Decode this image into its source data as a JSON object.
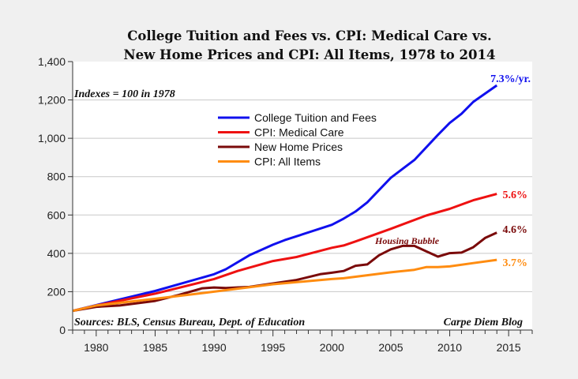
{
  "chart_data": {
    "type": "line",
    "title": [
      "College Tuition and Fees vs. CPI: Medical Care vs.",
      "New Home Prices and CPI: All Items, 1978 to 2014"
    ],
    "xlabel": "",
    "ylabel": "",
    "xlim": [
      1978,
      2017
    ],
    "ylim": [
      0,
      1400
    ],
    "x_ticks": [
      1980,
      1985,
      1990,
      1995,
      2000,
      2005,
      2010,
      2015
    ],
    "y_ticks": [
      0,
      200,
      400,
      600,
      800,
      1000,
      1200,
      1400
    ],
    "y_tick_labels": [
      "0",
      "200",
      "400",
      "600",
      "800",
      "1,000",
      "1,200",
      "1,400"
    ],
    "grid": "horizontal",
    "legend_position": "top-center",
    "annotations": {
      "index_note": "Indexes = 100 in 1978",
      "housing_bubble": "Housing Bubble",
      "sources": "Sources: BLS, Census Bureau, Dept. of Education",
      "credit": "Carpe Diem Blog"
    },
    "series": [
      {
        "name": "College Tuition and Fees",
        "color": "#1010ee",
        "end_label": "7.3%/yr.",
        "points": [
          [
            1978,
            100
          ],
          [
            1980,
            130
          ],
          [
            1985,
            204
          ],
          [
            1990,
            291
          ],
          [
            1991,
            317
          ],
          [
            1993,
            390
          ],
          [
            1995,
            445
          ],
          [
            1996,
            469
          ],
          [
            2000,
            549
          ],
          [
            2001,
            581
          ],
          [
            2002,
            618
          ],
          [
            2003,
            666
          ],
          [
            2005,
            794
          ],
          [
            2007,
            887
          ],
          [
            2009,
            1018
          ],
          [
            2010,
            1080
          ],
          [
            2011,
            1128
          ],
          [
            2012,
            1190
          ],
          [
            2014,
            1276
          ]
        ]
      },
      {
        "name": "CPI: Medical Care",
        "color": "#ee1111",
        "end_label": "5.6%",
        "points": [
          [
            1978,
            100
          ],
          [
            1980,
            128
          ],
          [
            1985,
            190
          ],
          [
            1990,
            266
          ],
          [
            1992,
            308
          ],
          [
            1995,
            360
          ],
          [
            1997,
            381
          ],
          [
            2000,
            429
          ],
          [
            2001,
            441
          ],
          [
            2002,
            462
          ],
          [
            2005,
            528
          ],
          [
            2008,
            597
          ],
          [
            2010,
            632
          ],
          [
            2012,
            677
          ],
          [
            2014,
            710
          ]
        ]
      },
      {
        "name": "New Home Prices",
        "color": "#7a0a0a",
        "end_label": "4.6%",
        "points": [
          [
            1978,
            100
          ],
          [
            1980,
            121
          ],
          [
            1982,
            128
          ],
          [
            1985,
            152
          ],
          [
            1987,
            183
          ],
          [
            1989,
            218
          ],
          [
            1990,
            222
          ],
          [
            1991,
            219
          ],
          [
            1993,
            225
          ],
          [
            1995,
            243
          ],
          [
            1997,
            261
          ],
          [
            1999,
            291
          ],
          [
            2000,
            299
          ],
          [
            2001,
            308
          ],
          [
            2002,
            335
          ],
          [
            2003,
            342
          ],
          [
            2004,
            390
          ],
          [
            2005,
            421
          ],
          [
            2006,
            439
          ],
          [
            2007,
            439
          ],
          [
            2008,
            411
          ],
          [
            2009,
            383
          ],
          [
            2010,
            401
          ],
          [
            2011,
            404
          ],
          [
            2012,
            432
          ],
          [
            2013,
            480
          ],
          [
            2014,
            508
          ]
        ]
      },
      {
        "name": "CPI: All Items",
        "color": "#ff8c10",
        "end_label": "3.7%",
        "points": [
          [
            1978,
            100
          ],
          [
            1980,
            128
          ],
          [
            1985,
            163
          ],
          [
            1990,
            200
          ],
          [
            1995,
            239
          ],
          [
            2000,
            266
          ],
          [
            2001,
            270
          ],
          [
            2005,
            301
          ],
          [
            2007,
            314
          ],
          [
            2008,
            328
          ],
          [
            2009,
            328
          ],
          [
            2010,
            332
          ],
          [
            2012,
            349
          ],
          [
            2014,
            366
          ]
        ]
      }
    ]
  }
}
